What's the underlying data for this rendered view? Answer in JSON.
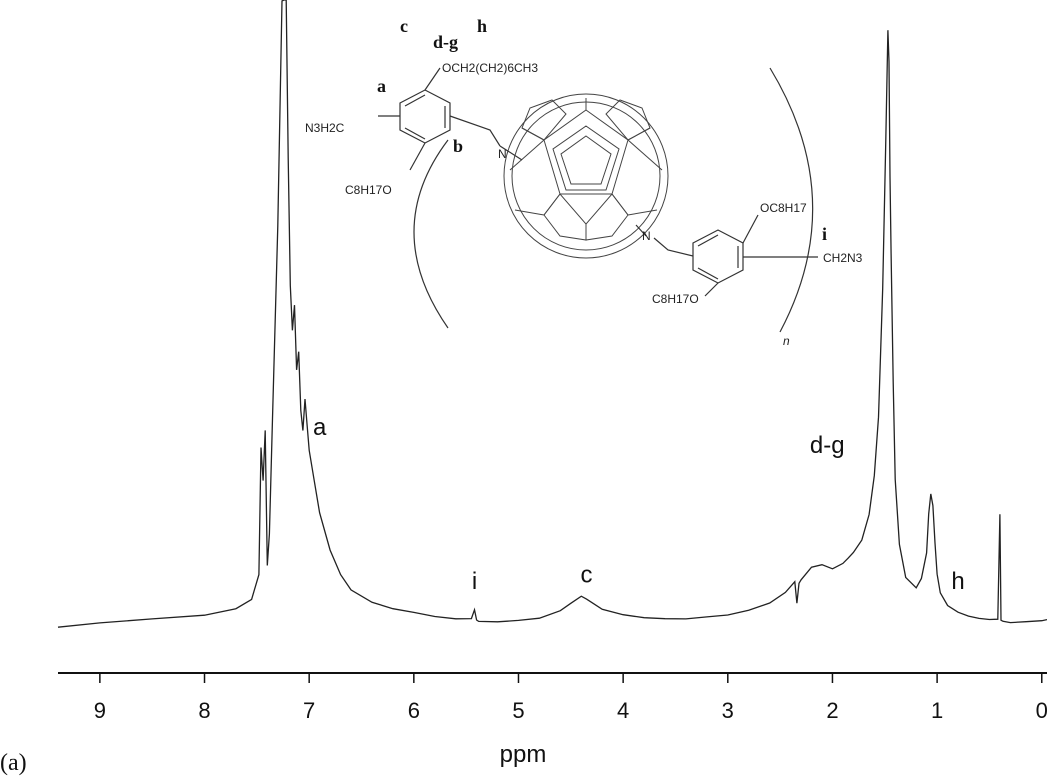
{
  "panel_label": "(a)",
  "chart_data": {
    "type": "line",
    "title": "",
    "xlabel": "ppm",
    "ylabel": "",
    "xlim": [
      9.4,
      -0.05
    ],
    "x_reversed": true,
    "ylim": [
      0,
      1
    ],
    "grid": false,
    "x_ticks": [
      9,
      8,
      7,
      6,
      5,
      4,
      3,
      2,
      1,
      0
    ],
    "x_tick_labels": [
      "9",
      "8",
      "7",
      "6",
      "5",
      "4",
      "3",
      "2",
      "1",
      "0"
    ],
    "series": [
      {
        "x": [
          9.4,
          9.0,
          8.5,
          8.0,
          7.7,
          7.55,
          7.48,
          7.46,
          7.44,
          7.42,
          7.4,
          7.38,
          7.35,
          7.3,
          7.26,
          7.24,
          7.22,
          7.2,
          7.18,
          7.16,
          7.14,
          7.12,
          7.1,
          7.08,
          7.06,
          7.04,
          7.02,
          7.0,
          6.95,
          6.9,
          6.8,
          6.7,
          6.6,
          6.4,
          6.2,
          6.0,
          5.8,
          5.6,
          5.45,
          5.42,
          5.4,
          5.38,
          5.2,
          5.0,
          4.8,
          4.6,
          4.5,
          4.4,
          4.35,
          4.3,
          4.2,
          4.0,
          3.8,
          3.6,
          3.4,
          3.2,
          3.0,
          2.8,
          2.6,
          2.45,
          2.36,
          2.34,
          2.32,
          2.3,
          2.2,
          2.1,
          2.0,
          1.9,
          1.85,
          1.8,
          1.72,
          1.65,
          1.6,
          1.56,
          1.52,
          1.49,
          1.47,
          1.46,
          1.45,
          1.44,
          1.42,
          1.4,
          1.36,
          1.3,
          1.2,
          1.15,
          1.1,
          1.08,
          1.06,
          1.04,
          1.02,
          1.0,
          0.97,
          0.9,
          0.8,
          0.7,
          0.6,
          0.5,
          0.42,
          0.4,
          0.39,
          0.37,
          0.3,
          0.15,
          0.0,
          -0.05
        ],
        "y": [
          0.02,
          0.025,
          0.03,
          0.035,
          0.045,
          0.06,
          0.1,
          0.3,
          0.25,
          0.33,
          0.12,
          0.17,
          0.35,
          0.65,
          1.0,
          1.0,
          1.0,
          0.75,
          0.55,
          0.48,
          0.52,
          0.42,
          0.45,
          0.36,
          0.33,
          0.38,
          0.34,
          0.3,
          0.25,
          0.2,
          0.14,
          0.1,
          0.075,
          0.055,
          0.045,
          0.04,
          0.035,
          0.033,
          0.035,
          0.05,
          0.035,
          0.033,
          0.032,
          0.033,
          0.035,
          0.045,
          0.055,
          0.065,
          0.06,
          0.055,
          0.045,
          0.038,
          0.035,
          0.035,
          0.036,
          0.04,
          0.043,
          0.05,
          0.06,
          0.075,
          0.09,
          0.055,
          0.085,
          0.09,
          0.11,
          0.115,
          0.11,
          0.12,
          0.13,
          0.14,
          0.16,
          0.2,
          0.26,
          0.35,
          0.55,
          0.78,
          0.95,
          0.9,
          0.72,
          0.6,
          0.4,
          0.25,
          0.15,
          0.1,
          0.085,
          0.1,
          0.14,
          0.2,
          0.23,
          0.21,
          0.15,
          0.1,
          0.07,
          0.05,
          0.04,
          0.035,
          0.033,
          0.033,
          0.035,
          0.2,
          0.035,
          0.033,
          0.03,
          0.03,
          0.03,
          0.03
        ]
      }
    ],
    "annotations": [
      {
        "text": "a",
        "x": 6.9
      },
      {
        "text": "i",
        "x": 5.42
      },
      {
        "text": "c",
        "x": 4.35
      },
      {
        "text": "d-g",
        "x": 2.05
      },
      {
        "text": "h",
        "x": 0.8
      }
    ]
  },
  "structure": {
    "labels_bold": {
      "c": "c",
      "dg": "d-g",
      "h": "h",
      "a": "a",
      "b": "b",
      "i": "i"
    },
    "groups": {
      "top_chain": "OCH2(CH2)6CH3",
      "azidomethyl_left": "N3H2C",
      "octyloxy_left": "C8H17O",
      "octyloxy_right_top": "OC8H17",
      "azidomethyl_right": "CH2N3",
      "octyloxy_right_bottom": "C8H17O",
      "nitrogen_1": "N",
      "nitrogen_2": "N",
      "repeat": "n"
    }
  }
}
